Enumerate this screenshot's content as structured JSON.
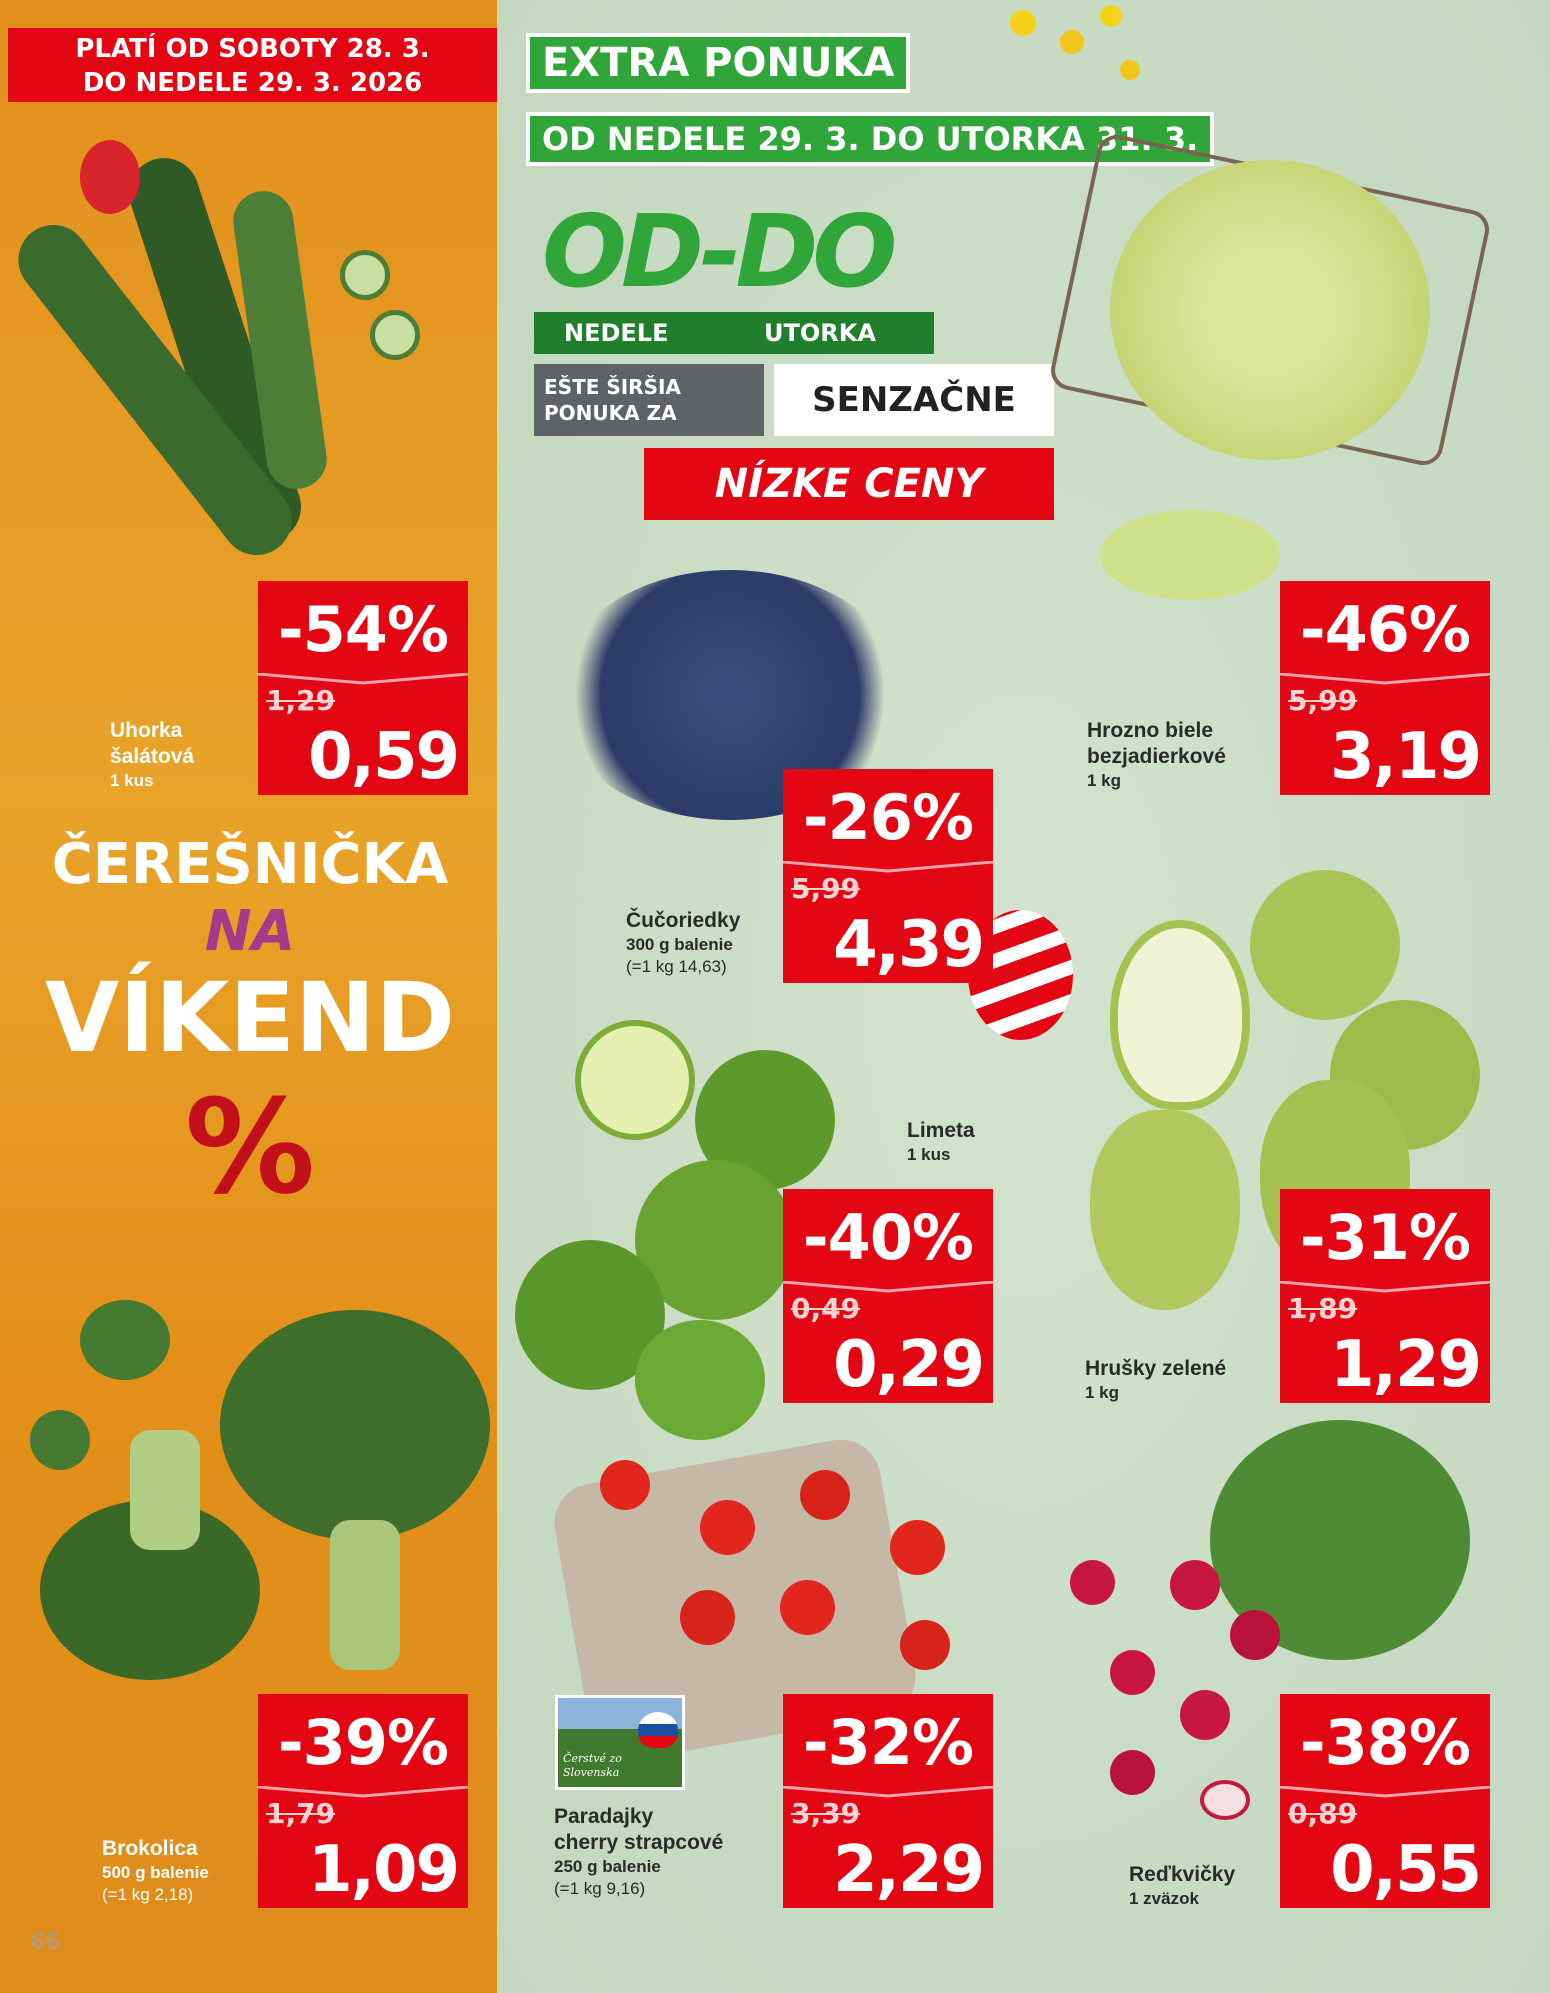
{
  "header": {
    "validity_left": [
      "PLATÍ OD SOBOTY 28. 3.",
      "DO NEDELE 29. 3. 2026"
    ],
    "extra_offer": "EXTRA PONUKA",
    "extra_dates": "OD NEDELE 29. 3. DO UTORKA 31. 3."
  },
  "promo_logo": {
    "title": "OD-DO",
    "from": "NEDELE",
    "to": "UTORKA",
    "line1": "EŠTE ŠIRŠIA PONUKA ZA",
    "line2": "SENZAČNE",
    "line3": "NÍZKE CENY"
  },
  "weekend_promo": {
    "line1": "ČEREŠNIČKA",
    "line2": "NA",
    "line3": "VÍKEND",
    "symbol": "%"
  },
  "products": [
    {
      "name": [
        "Uhorka",
        "šalátová"
      ],
      "unit": "1 kus",
      "unit_price": "",
      "discount": "-54%",
      "old_price": "1,29",
      "price": "0,59"
    },
    {
      "name": [
        "Čučoriedky"
      ],
      "unit": "300 g balenie",
      "unit_price": "(=1 kg 14,63)",
      "discount": "-26%",
      "old_price": "5,99",
      "price": "4,39"
    },
    {
      "name": [
        "Hrozno biele",
        "bezjadierkové"
      ],
      "unit": "1 kg",
      "unit_price": "",
      "discount": "-46%",
      "old_price": "5,99",
      "price": "3,19"
    },
    {
      "name": [
        "Limeta"
      ],
      "unit": "1 kus",
      "unit_price": "",
      "discount": "-40%",
      "old_price": "0,49",
      "price": "0,29"
    },
    {
      "name": [
        "Hrušky zelené"
      ],
      "unit": "1 kg",
      "unit_price": "",
      "discount": "-31%",
      "old_price": "1,89",
      "price": "1,29"
    },
    {
      "name": [
        "Brokolica"
      ],
      "unit": "500 g balenie",
      "unit_price": "(=1 kg 2,18)",
      "discount": "-39%",
      "old_price": "1,79",
      "price": "1,09"
    },
    {
      "name": [
        "Paradajky",
        "cherry strapcové"
      ],
      "unit": "250 g balenie",
      "unit_price": "(=1 kg 9,16)",
      "discount": "-32%",
      "old_price": "3,39",
      "price": "2,29"
    },
    {
      "name": [
        "Reďkvičky"
      ],
      "unit": "1 zväzok",
      "unit_price": "",
      "discount": "-38%",
      "old_price": "0,89",
      "price": "0,55"
    }
  ],
  "origin_badge": "Čerstvé zo Slovenska",
  "page_number": "66",
  "colors": {
    "red": "#e30613",
    "green": "#2fa53a",
    "orange": "#e28f1c",
    "mint": "#c9dcc4"
  }
}
